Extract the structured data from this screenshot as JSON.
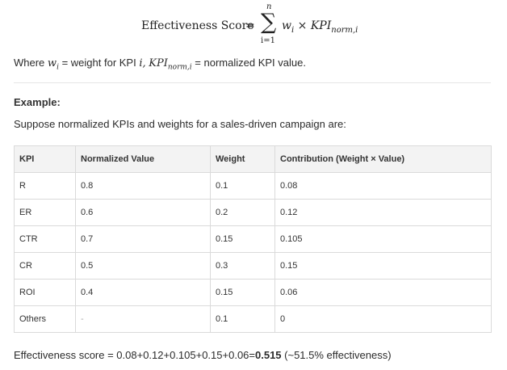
{
  "formula": {
    "lhs": "Effectiveness Score",
    "equals": "=",
    "sigma": "∑",
    "upper": "n",
    "lower": "i=1",
    "weight": "w",
    "weight_sub": "i",
    "times": "×",
    "kpi": "KPI",
    "kpi_sub": "norm,i"
  },
  "where": {
    "prefix": "Where",
    "w": "w",
    "w_sub": "i",
    "weight_text": "= weight for KPI",
    "i": "i,",
    "kpi": "KPI",
    "kpi_sub": "norm,i",
    "normalized_text": "= normalized KPI value."
  },
  "example": {
    "heading": "Example:",
    "intro": "Suppose normalized KPIs and weights for a sales-driven campaign are:"
  },
  "table": {
    "headers": [
      "KPI",
      "Normalized Value",
      "Weight",
      "Contribution (Weight × Value)"
    ],
    "rows": [
      [
        "R",
        "0.8",
        "0.1",
        "0.08"
      ],
      [
        "ER",
        "0.6",
        "0.2",
        "0.12"
      ],
      [
        "CTR",
        "0.7",
        "0.15",
        "0.105"
      ],
      [
        "CR",
        "0.5",
        "0.3",
        "0.15"
      ],
      [
        "ROI",
        "0.4",
        "0.15",
        "0.06"
      ],
      [
        "Others",
        "-",
        "0.1",
        "0"
      ]
    ]
  },
  "summary": {
    "prefix": "Effectiveness score = 0.08+0.12+0.105+0.15+0.06=",
    "result": "0.515",
    "suffix": " (~51.5% effectiveness)"
  }
}
